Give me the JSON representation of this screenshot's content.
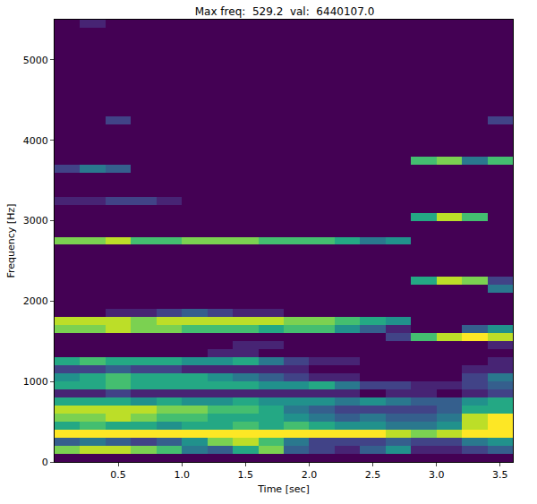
{
  "chart_data": {
    "type": "heatmap",
    "title": "Max freq:  529.2  val:  6440107.0",
    "x_label": "Time [sec]",
    "y_label": "Frequency [Hz]",
    "x": [
      0,
      0.2,
      0.4,
      0.6,
      0.8,
      1.0,
      1.2,
      1.4,
      1.6,
      1.8,
      2.0,
      2.2,
      2.4,
      2.6,
      2.8,
      3.0,
      3.2,
      3.4,
      3.6
    ],
    "y": [
      0,
      100,
      200,
      300,
      400,
      500,
      600,
      700,
      800,
      900,
      1000,
      1100,
      1200,
      1300,
      1400,
      1500,
      1600,
      1700,
      1800,
      1900,
      2000,
      2100,
      2200,
      2300,
      2400,
      2500,
      2600,
      2700,
      2800,
      2900,
      3000,
      3100,
      3200,
      3300,
      3400,
      3500,
      3600,
      3700,
      3800,
      3900,
      4000,
      4100,
      4200,
      4300,
      4400,
      4500,
      4600,
      4700,
      4800,
      4900,
      5000,
      5100,
      5200,
      5300,
      5400,
      5500
    ],
    "cells": [
      [
        0,
        0,
        0,
        0,
        0,
        0,
        0,
        0,
        0,
        0,
        0,
        0,
        0,
        0,
        0,
        0,
        0,
        0
      ],
      [
        8,
        9,
        9,
        8,
        7,
        4,
        3,
        6,
        8,
        3,
        2,
        1,
        3,
        5,
        1,
        1,
        2,
        3
      ],
      [
        3,
        4,
        3,
        2,
        3,
        5,
        8,
        9,
        7,
        4,
        2,
        2,
        2,
        3,
        2,
        2,
        4,
        5
      ],
      [
        10,
        10,
        10,
        10,
        10,
        10,
        10,
        10,
        10,
        10,
        10,
        10,
        10,
        9,
        8,
        9,
        10,
        10
      ],
      [
        6,
        7,
        6,
        6,
        5,
        6,
        6,
        7,
        6,
        7,
        6,
        5,
        5,
        4,
        4,
        5,
        9,
        10
      ],
      [
        8,
        8,
        9,
        8,
        7,
        7,
        6,
        6,
        6,
        5,
        4,
        3,
        4,
        3,
        3,
        4,
        9,
        10
      ],
      [
        9,
        9,
        9,
        9,
        8,
        8,
        7,
        7,
        6,
        4,
        3,
        2,
        2,
        2,
        2,
        3,
        6,
        6
      ],
      [
        6,
        6,
        6,
        5,
        6,
        5,
        5,
        6,
        5,
        5,
        5,
        4,
        5,
        4,
        3,
        3,
        5,
        6
      ],
      [
        1,
        1,
        2,
        1,
        1,
        1,
        1,
        1,
        1,
        1,
        1,
        1,
        0,
        1,
        1,
        0,
        1,
        2
      ],
      [
        6,
        6,
        7,
        6,
        6,
        6,
        6,
        6,
        5,
        5,
        6,
        4,
        2,
        2,
        1,
        1,
        2,
        3
      ],
      [
        5,
        6,
        7,
        6,
        6,
        6,
        5,
        4,
        3,
        2,
        1,
        1,
        0,
        0,
        0,
        0,
        2,
        4
      ],
      [
        2,
        2,
        3,
        2,
        2,
        1,
        1,
        1,
        1,
        1,
        0,
        0,
        0,
        0,
        0,
        0,
        1,
        1
      ],
      [
        6,
        7,
        6,
        6,
        6,
        5,
        5,
        6,
        4,
        2,
        1,
        1,
        0,
        0,
        0,
        0,
        0,
        1
      ],
      [
        0,
        0,
        0,
        0,
        0,
        0,
        1,
        1,
        0,
        0,
        0,
        0,
        0,
        0,
        0,
        0,
        0,
        0
      ],
      [
        0,
        0,
        0,
        0,
        0,
        0,
        0,
        1,
        1,
        0,
        0,
        0,
        0,
        0,
        0,
        0,
        0,
        1
      ],
      [
        0,
        0,
        0,
        0,
        0,
        0,
        0,
        0,
        0,
        0,
        0,
        0,
        0,
        2,
        7,
        9,
        10,
        9
      ],
      [
        8,
        8,
        9,
        8,
        8,
        7,
        7,
        7,
        6,
        7,
        7,
        5,
        3,
        1,
        0,
        0,
        3,
        5
      ],
      [
        9,
        9,
        9,
        8,
        9,
        9,
        9,
        9,
        9,
        8,
        8,
        7,
        6,
        5,
        0,
        0,
        0,
        0
      ],
      [
        0,
        0,
        1,
        1,
        2,
        3,
        2,
        1,
        1,
        0,
        0,
        0,
        0,
        0,
        0,
        0,
        0,
        0
      ],
      [
        0,
        0,
        0,
        0,
        0,
        0,
        0,
        0,
        0,
        0,
        0,
        0,
        0,
        0,
        0,
        0,
        0,
        0
      ],
      [
        0,
        0,
        0,
        0,
        0,
        0,
        0,
        0,
        0,
        0,
        0,
        0,
        0,
        0,
        0,
        0,
        0,
        0
      ],
      [
        0,
        0,
        0,
        0,
        0,
        0,
        0,
        0,
        0,
        0,
        0,
        0,
        0,
        0,
        0,
        0,
        0,
        4
      ],
      [
        0,
        0,
        0,
        0,
        0,
        0,
        0,
        0,
        0,
        0,
        0,
        0,
        0,
        0,
        6,
        9,
        8,
        2
      ],
      [
        0,
        0,
        0,
        0,
        0,
        0,
        0,
        0,
        0,
        0,
        0,
        0,
        0,
        0,
        0,
        0,
        0,
        0
      ],
      [
        0,
        0,
        0,
        0,
        0,
        0,
        0,
        0,
        0,
        0,
        0,
        0,
        0,
        0,
        0,
        0,
        0,
        0
      ],
      [
        0,
        0,
        0,
        0,
        0,
        0,
        0,
        0,
        0,
        0,
        0,
        0,
        0,
        0,
        0,
        0,
        0,
        0
      ],
      [
        0,
        0,
        0,
        0,
        0,
        0,
        0,
        0,
        0,
        0,
        0,
        0,
        0,
        0,
        0,
        0,
        0,
        0
      ],
      [
        8,
        8,
        9,
        7,
        7,
        8,
        8,
        8,
        7,
        7,
        7,
        6,
        4,
        5,
        0,
        0,
        0,
        0
      ],
      [
        0,
        0,
        0,
        0,
        0,
        0,
        0,
        0,
        0,
        0,
        0,
        0,
        0,
        0,
        0,
        0,
        0,
        0
      ],
      [
        0,
        0,
        0,
        0,
        0,
        0,
        0,
        0,
        0,
        0,
        0,
        0,
        0,
        0,
        0,
        0,
        0,
        0
      ],
      [
        0,
        0,
        0,
        0,
        0,
        0,
        0,
        0,
        0,
        0,
        0,
        0,
        0,
        0,
        6,
        9,
        7,
        0
      ],
      [
        0,
        0,
        0,
        0,
        0,
        0,
        0,
        0,
        0,
        0,
        0,
        0,
        0,
        0,
        0,
        0,
        0,
        0
      ],
      [
        1,
        1,
        2,
        2,
        1,
        0,
        0,
        0,
        0,
        0,
        0,
        0,
        0,
        0,
        0,
        0,
        0,
        0
      ],
      [
        0,
        0,
        0,
        0,
        0,
        0,
        0,
        0,
        0,
        0,
        0,
        0,
        0,
        0,
        0,
        0,
        0,
        0
      ],
      [
        0,
        0,
        0,
        0,
        0,
        0,
        0,
        0,
        0,
        0,
        0,
        0,
        0,
        0,
        0,
        0,
        0,
        0
      ],
      [
        0,
        0,
        0,
        0,
        0,
        0,
        0,
        0,
        0,
        0,
        0,
        0,
        0,
        0,
        0,
        0,
        0,
        0
      ],
      [
        2,
        4,
        3,
        0,
        0,
        0,
        0,
        0,
        0,
        0,
        0,
        0,
        0,
        0,
        0,
        0,
        0,
        0
      ],
      [
        0,
        0,
        0,
        0,
        0,
        0,
        0,
        0,
        0,
        0,
        0,
        0,
        0,
        0,
        7,
        8,
        4,
        7
      ],
      [
        0,
        0,
        0,
        0,
        0,
        0,
        0,
        0,
        0,
        0,
        0,
        0,
        0,
        0,
        0,
        0,
        0,
        0
      ],
      [
        0,
        0,
        0,
        0,
        0,
        0,
        0,
        0,
        0,
        0,
        0,
        0,
        0,
        0,
        0,
        0,
        0,
        0
      ],
      [
        0,
        0,
        0,
        0,
        0,
        0,
        0,
        0,
        0,
        0,
        0,
        0,
        0,
        0,
        0,
        0,
        0,
        0
      ],
      [
        0,
        0,
        0,
        0,
        0,
        0,
        0,
        0,
        0,
        0,
        0,
        0,
        0,
        0,
        0,
        0,
        0,
        0
      ],
      [
        0,
        0,
        2,
        0,
        0,
        0,
        0,
        0,
        0,
        0,
        0,
        0,
        0,
        0,
        0,
        0,
        0,
        2
      ],
      [
        0,
        0,
        0,
        0,
        0,
        0,
        0,
        0,
        0,
        0,
        0,
        0,
        0,
        0,
        0,
        0,
        0,
        0
      ],
      [
        0,
        0,
        0,
        0,
        0,
        0,
        0,
        0,
        0,
        0,
        0,
        0,
        0,
        0,
        0,
        0,
        0,
        0
      ],
      [
        0,
        0,
        0,
        0,
        0,
        0,
        0,
        0,
        0,
        0,
        0,
        0,
        0,
        0,
        0,
        0,
        0,
        0
      ],
      [
        0,
        0,
        0,
        0,
        0,
        0,
        0,
        0,
        0,
        0,
        0,
        0,
        0,
        0,
        0,
        0,
        0,
        0
      ],
      [
        0,
        0,
        0,
        0,
        0,
        0,
        0,
        0,
        0,
        0,
        0,
        0,
        0,
        0,
        0,
        0,
        0,
        0
      ],
      [
        0,
        0,
        0,
        0,
        0,
        0,
        0,
        0,
        0,
        0,
        0,
        0,
        0,
        0,
        0,
        0,
        0,
        0
      ],
      [
        0,
        0,
        0,
        0,
        0,
        0,
        0,
        0,
        0,
        0,
        0,
        0,
        0,
        0,
        0,
        0,
        0,
        0
      ],
      [
        0,
        0,
        0,
        0,
        0,
        0,
        0,
        0,
        0,
        0,
        0,
        0,
        0,
        0,
        0,
        0,
        0,
        0
      ],
      [
        0,
        0,
        0,
        0,
        0,
        0,
        0,
        0,
        0,
        0,
        0,
        0,
        0,
        0,
        0,
        0,
        0,
        0
      ],
      [
        0,
        0,
        0,
        0,
        0,
        0,
        0,
        0,
        0,
        0,
        0,
        0,
        0,
        0,
        0,
        0,
        0,
        0
      ],
      [
        0,
        0,
        0,
        0,
        0,
        0,
        0,
        0,
        0,
        0,
        0,
        0,
        0,
        0,
        0,
        0,
        0,
        0
      ],
      [
        0,
        1,
        0,
        0,
        0,
        0,
        0,
        0,
        0,
        0,
        0,
        0,
        0,
        0,
        0,
        0,
        0,
        0
      ]
    ],
    "zlim": [
      0,
      10
    ],
    "xlim": [
      0,
      3.6
    ],
    "ylim": [
      0,
      5500
    ],
    "xticks": [
      0.5,
      {
        "value": 1.0,
        "label": "1.0"
      },
      1.5,
      {
        "value": 2.0,
        "label": "2.0"
      },
      2.5,
      {
        "value": 3.0,
        "label": "3.0"
      },
      3.5
    ],
    "yticks": [
      0,
      1000,
      2000,
      3000,
      4000,
      5000
    ],
    "grid": false
  }
}
